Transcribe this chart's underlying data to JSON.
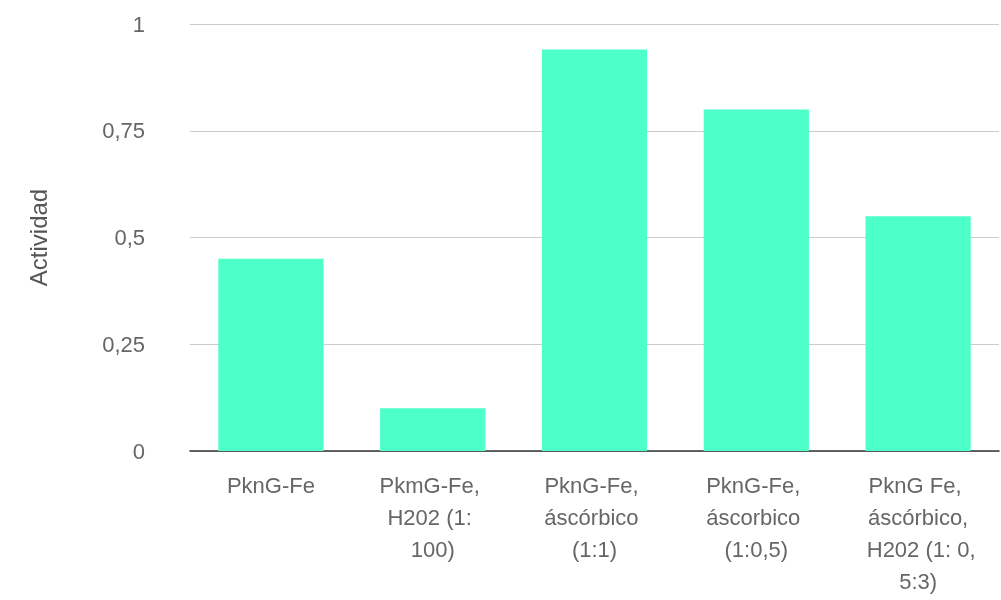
{
  "chart_data": {
    "type": "bar",
    "ylabel": "Actividad",
    "categories": [
      "PknG-Fe",
      "PkmG-Fe, H202 (1: 100)",
      "PknG-Fe, áscórbico (1:1)",
      "PknG-Fe, áscorbico (1:0,5)",
      "PknG Fe, áscórbico, H202 (1: 0,5:3)"
    ],
    "values": [
      0.45,
      0.1,
      0.94,
      0.8,
      0.55
    ],
    "color": "#4dffc9",
    "ylim": [
      0,
      1
    ],
    "yticks": [
      0,
      {
        "value": 0.25,
        "label": "0,25"
      },
      {
        "value": 0.5,
        "label": "0,5"
      },
      {
        "value": 0.75,
        "label": "0,75"
      },
      1
    ],
    "grid": "y"
  }
}
